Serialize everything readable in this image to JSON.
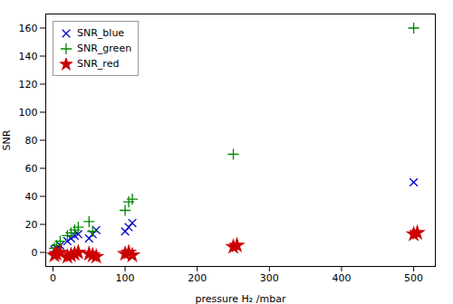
{
  "chart_data": {
    "type": "scatter",
    "xlabel": "pressure H₂ /mbar",
    "ylabel": "SNR",
    "xlim": [
      -10,
      530
    ],
    "ylim": [
      -10,
      170
    ],
    "xticks": [
      0,
      100,
      200,
      300,
      400,
      500
    ],
    "yticks": [
      0,
      20,
      40,
      60,
      80,
      100,
      120,
      140,
      160
    ],
    "grid": false,
    "legend": "top-left",
    "series": [
      {
        "name": "SNR_blue",
        "color": "#0000cc",
        "marker": "x",
        "x": [
          2,
          5,
          10,
          20,
          25,
          30,
          35,
          50,
          55,
          60,
          100,
          105,
          110,
          500
        ],
        "values": [
          2,
          3,
          5,
          8,
          10,
          12,
          13,
          10,
          13,
          16,
          15,
          18,
          21,
          50
        ]
      },
      {
        "name": "SNR_green",
        "color": "#008800",
        "marker": "plus",
        "x": [
          2,
          5,
          10,
          20,
          25,
          30,
          35,
          50,
          55,
          100,
          105,
          110,
          250,
          500
        ],
        "values": [
          3,
          5,
          8,
          12,
          14,
          16,
          18,
          22,
          15,
          30,
          36,
          38,
          70,
          160
        ]
      },
      {
        "name": "SNR_red",
        "color": "#cc0000",
        "marker": "star",
        "x": [
          2,
          5,
          10,
          20,
          25,
          30,
          35,
          50,
          55,
          60,
          100,
          105,
          110,
          250,
          255,
          500,
          505
        ],
        "values": [
          -2,
          -1,
          0,
          -3,
          -2,
          -1,
          0,
          -1,
          -2,
          -3,
          -1,
          0,
          -2,
          4,
          5,
          13,
          14
        ]
      }
    ]
  }
}
